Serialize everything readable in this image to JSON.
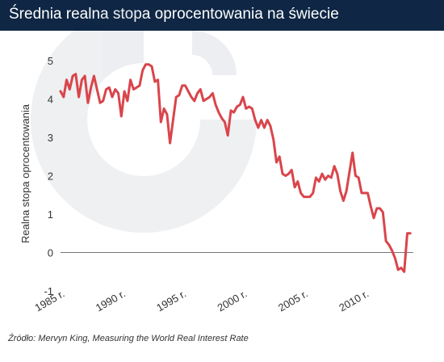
{
  "header": {
    "title": "Średnia realna stopa oprocentowania na świecie"
  },
  "source": "Źródło: Mervyn King, Measuring the World Real Interest Rate",
  "colors": {
    "header_bg": "#0f2745",
    "line": "#d9454b",
    "axis_text": "#333333",
    "zero_line": "#777777"
  },
  "chart_data": {
    "type": "line",
    "ylabel": "Realna stopa oprocentowania",
    "xlabel": "",
    "ylim": [
      -1,
      5
    ],
    "xlim": [
      1985,
      2014
    ],
    "y_ticks": [
      5,
      4,
      3,
      2,
      1,
      0,
      -1
    ],
    "x_ticks": [
      1985,
      1990,
      1995,
      2000,
      2005,
      2010
    ],
    "x_tick_labels": [
      "1985 r.",
      "1990 r.",
      "1995 r.",
      "2000 r.",
      "2005 r.",
      "2010 r."
    ],
    "grid": false,
    "zero_line": true,
    "series": [
      {
        "x": [
          1985.0,
          1985.25,
          1985.5,
          1985.75,
          1986.0,
          1986.25,
          1986.5,
          1986.75,
          1987.0,
          1987.25,
          1987.5,
          1987.75,
          1988.0,
          1988.25,
          1988.5,
          1988.75,
          1989.0,
          1989.25,
          1989.5,
          1989.75,
          1990.0,
          1990.25,
          1990.5,
          1990.75,
          1991.0,
          1991.25,
          1991.5,
          1991.75,
          1992.0,
          1992.25,
          1992.5,
          1992.75,
          1993.0,
          1993.25,
          1993.5,
          1993.75,
          1994.0,
          1994.25,
          1994.5,
          1994.75,
          1995.0,
          1995.25,
          1995.5,
          1995.75,
          1996.0,
          1996.25,
          1996.5,
          1996.75,
          1997.0,
          1997.25,
          1997.5,
          1997.75,
          1998.0,
          1998.25,
          1998.5,
          1998.75,
          1999.0,
          1999.25,
          1999.5,
          1999.75,
          2000.0,
          2000.25,
          2000.5,
          2000.75,
          2001.0,
          2001.25,
          2001.5,
          2001.75,
          2002.0,
          2002.25,
          2002.5,
          2002.75,
          2003.0,
          2003.25,
          2003.5,
          2003.75,
          2004.0,
          2004.25,
          2004.5,
          2004.75,
          2005.0,
          2005.25,
          2005.5,
          2005.75,
          2006.0,
          2006.25,
          2006.5,
          2006.75,
          2007.0,
          2007.25,
          2007.5,
          2007.75,
          2008.0,
          2008.25,
          2008.5,
          2008.75,
          2009.0,
          2009.25,
          2009.5,
          2009.75,
          2010.0,
          2010.25,
          2010.5,
          2010.75,
          2011.0,
          2011.25,
          2011.5,
          2011.75,
          2012.0,
          2012.25,
          2012.5,
          2012.75,
          2013.0,
          2013.25,
          2013.5,
          2013.75
        ],
        "y": [
          4.2,
          4.05,
          4.5,
          4.25,
          4.6,
          4.65,
          4.05,
          4.5,
          4.6,
          3.9,
          4.3,
          4.6,
          4.25,
          3.9,
          3.95,
          4.25,
          4.3,
          4.05,
          4.25,
          4.15,
          3.55,
          4.2,
          3.95,
          4.5,
          4.25,
          4.3,
          4.35,
          4.75,
          4.9,
          4.9,
          4.85,
          4.45,
          4.5,
          3.4,
          3.75,
          3.6,
          2.85,
          3.45,
          4.05,
          4.1,
          4.35,
          4.35,
          4.2,
          4.05,
          3.95,
          4.15,
          4.25,
          3.95,
          4.0,
          4.05,
          4.15,
          3.85,
          3.65,
          3.5,
          3.4,
          3.05,
          3.7,
          3.65,
          3.8,
          3.85,
          4.05,
          3.75,
          3.8,
          3.75,
          3.45,
          3.25,
          3.45,
          3.25,
          3.45,
          3.3,
          2.95,
          2.35,
          2.5,
          2.05,
          2.0,
          2.05,
          2.15,
          1.7,
          1.85,
          1.55,
          1.45,
          1.45,
          1.45,
          1.55,
          1.95,
          1.85,
          2.05,
          1.9,
          2.0,
          1.95,
          2.25,
          2.05,
          1.6,
          1.35,
          1.6,
          2.1,
          2.6,
          2.0,
          1.95,
          1.55,
          1.55,
          1.55,
          1.2,
          0.9,
          1.15,
          1.15,
          1.05,
          0.3,
          0.2,
          0.05,
          -0.15,
          -0.45,
          -0.4,
          -0.5,
          0.5,
          0.5
        ]
      }
    ]
  }
}
